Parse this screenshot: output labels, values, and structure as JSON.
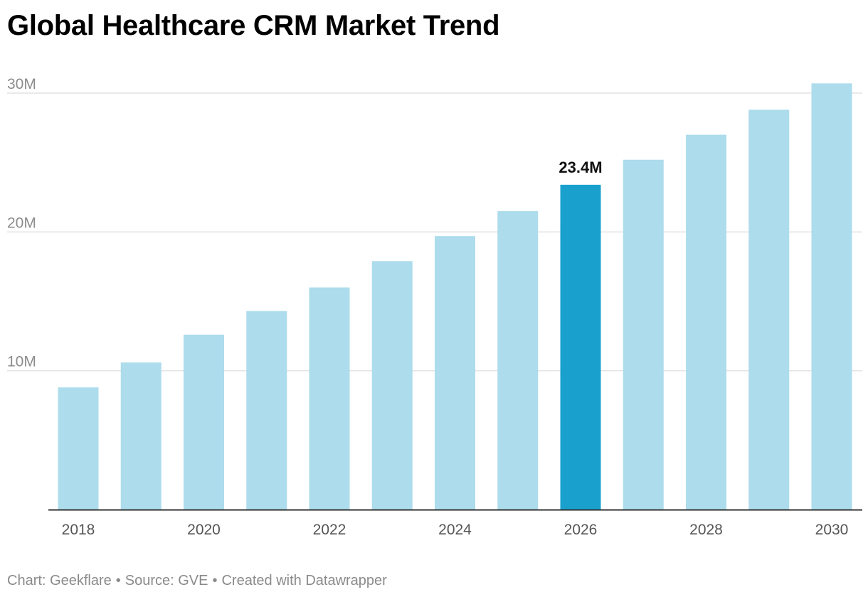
{
  "chart_data": {
    "type": "bar",
    "title": "Global Healthcare CRM Market Trend",
    "xlabel": "",
    "ylabel": "",
    "categories": [
      "2018",
      "2019",
      "2020",
      "2021",
      "2022",
      "2023",
      "2024",
      "2025",
      "2026",
      "2027",
      "2028",
      "2029",
      "2030"
    ],
    "values": [
      8.8,
      10.6,
      12.6,
      14.3,
      16.0,
      17.9,
      19.7,
      21.5,
      23.4,
      25.2,
      27.0,
      28.8,
      30.7
    ],
    "x_tick_labels": [
      "2018",
      "",
      "2020",
      "",
      "2022",
      "",
      "2024",
      "",
      "2026",
      "",
      "2028",
      "",
      "2030"
    ],
    "y_ticks": [
      10,
      20,
      30
    ],
    "y_tick_labels": [
      "10M",
      "20M",
      "30M"
    ],
    "ylim": [
      0,
      31
    ],
    "grid": true,
    "highlight_index": 8,
    "highlight_label": "23.4M",
    "colors": {
      "bar": "#addcec",
      "highlight": "#19a0cd",
      "grid": "#e2e2e2",
      "baseline": "#333333",
      "tick_text": "#8c8c8c",
      "value_label": "#111111"
    }
  },
  "footer": {
    "chart_credit": "Chart: Geekflare",
    "source": "Source: GVE",
    "created_with": "Created with Datawrapper",
    "separator": "•"
  }
}
